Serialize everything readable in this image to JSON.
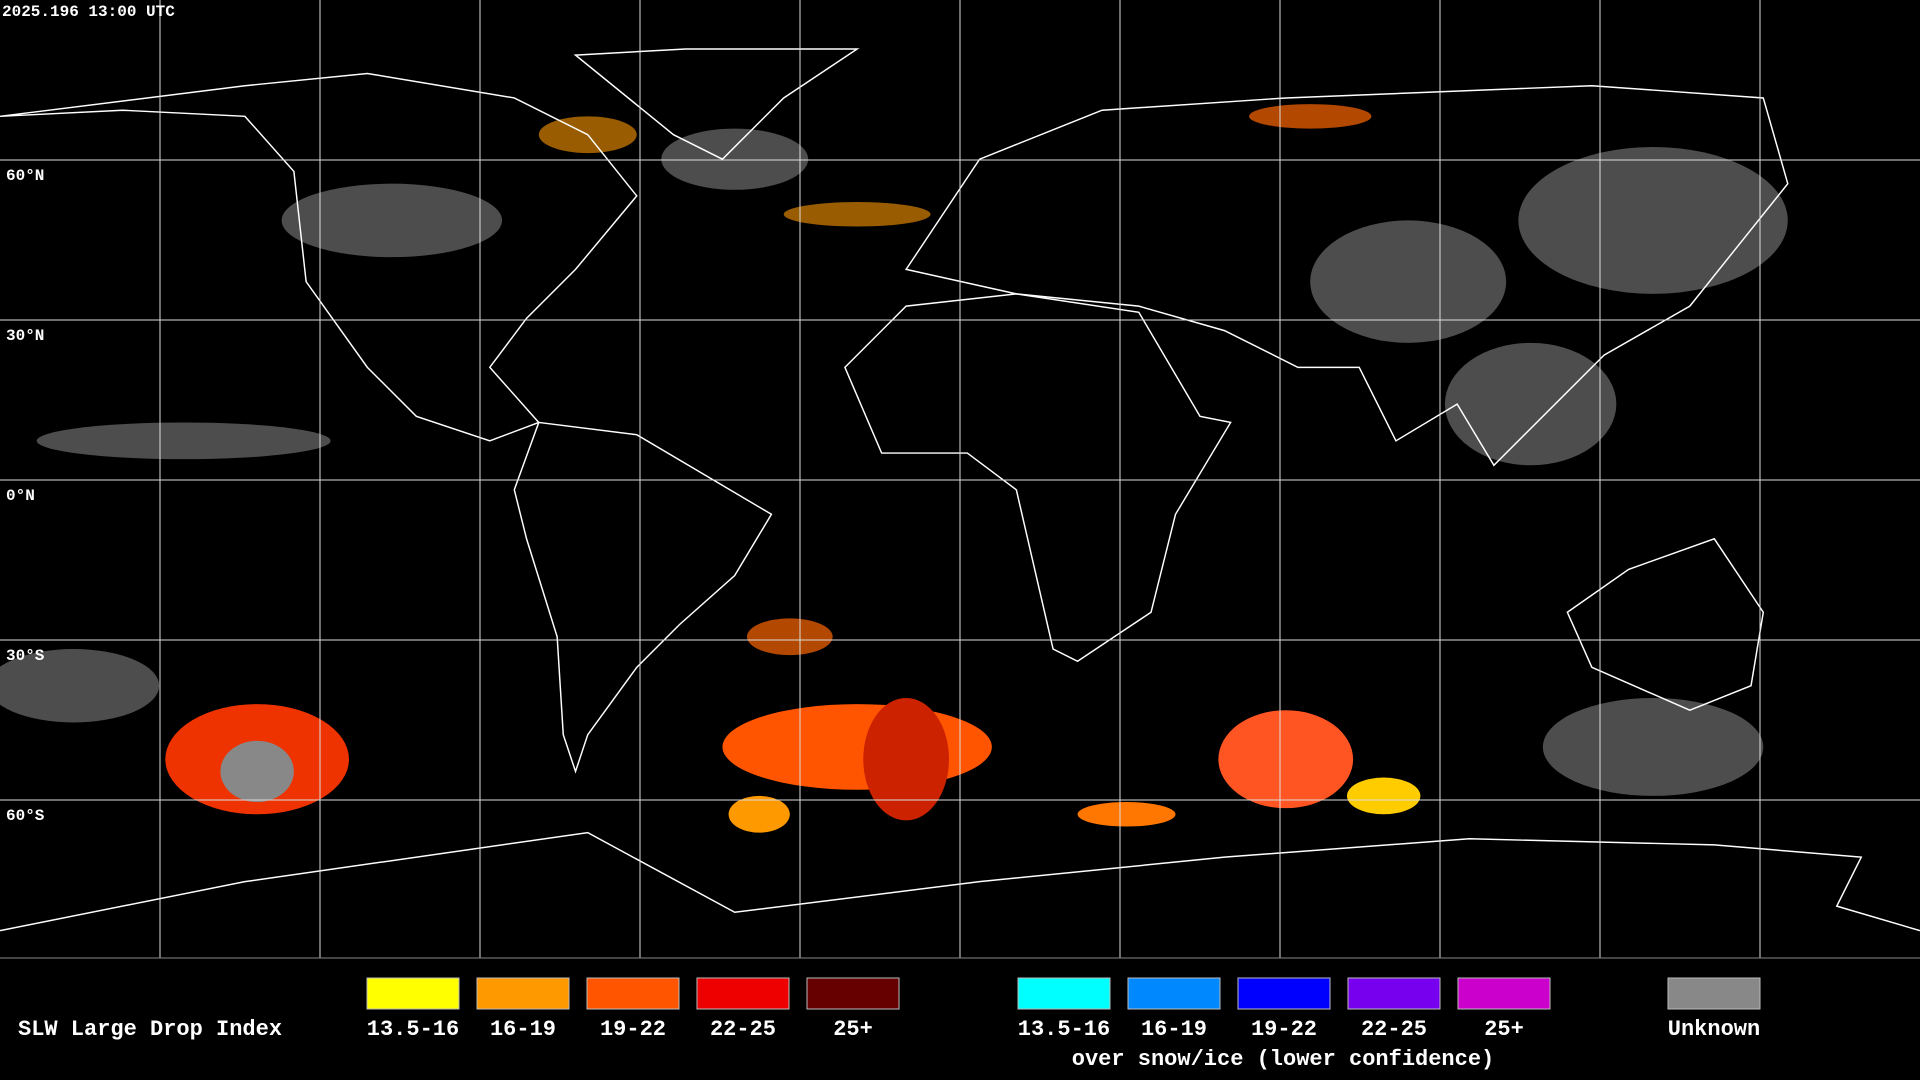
{
  "header": {
    "timestamp": "2025.196 13:00 UTC"
  },
  "map": {
    "lat_labels": [
      "60°N",
      "30°N",
      "0°N",
      "30°S",
      "60°S"
    ]
  },
  "legend": {
    "title": "SLW Large Drop Index",
    "items": [
      {
        "label": "13.5-16",
        "color": "#ffff00"
      },
      {
        "label": "16-19",
        "color": "#ff9900"
      },
      {
        "label": "19-22",
        "color": "#ff5500"
      },
      {
        "label": "22-25",
        "color": "#ee0000"
      },
      {
        "label": "25+",
        "color": "#660000"
      }
    ],
    "snow_items": [
      {
        "label": "13.5-16",
        "color": "#00ffff"
      },
      {
        "label": "16-19",
        "color": "#0088ff"
      },
      {
        "label": "19-22",
        "color": "#0000ff"
      },
      {
        "label": "22-25",
        "color": "#7700ee"
      },
      {
        "label": "25+",
        "color": "#cc00cc"
      }
    ],
    "snow_note": "over snow/ice (lower confidence)",
    "unknown": {
      "label": "Unknown",
      "color": "#888888"
    }
  }
}
